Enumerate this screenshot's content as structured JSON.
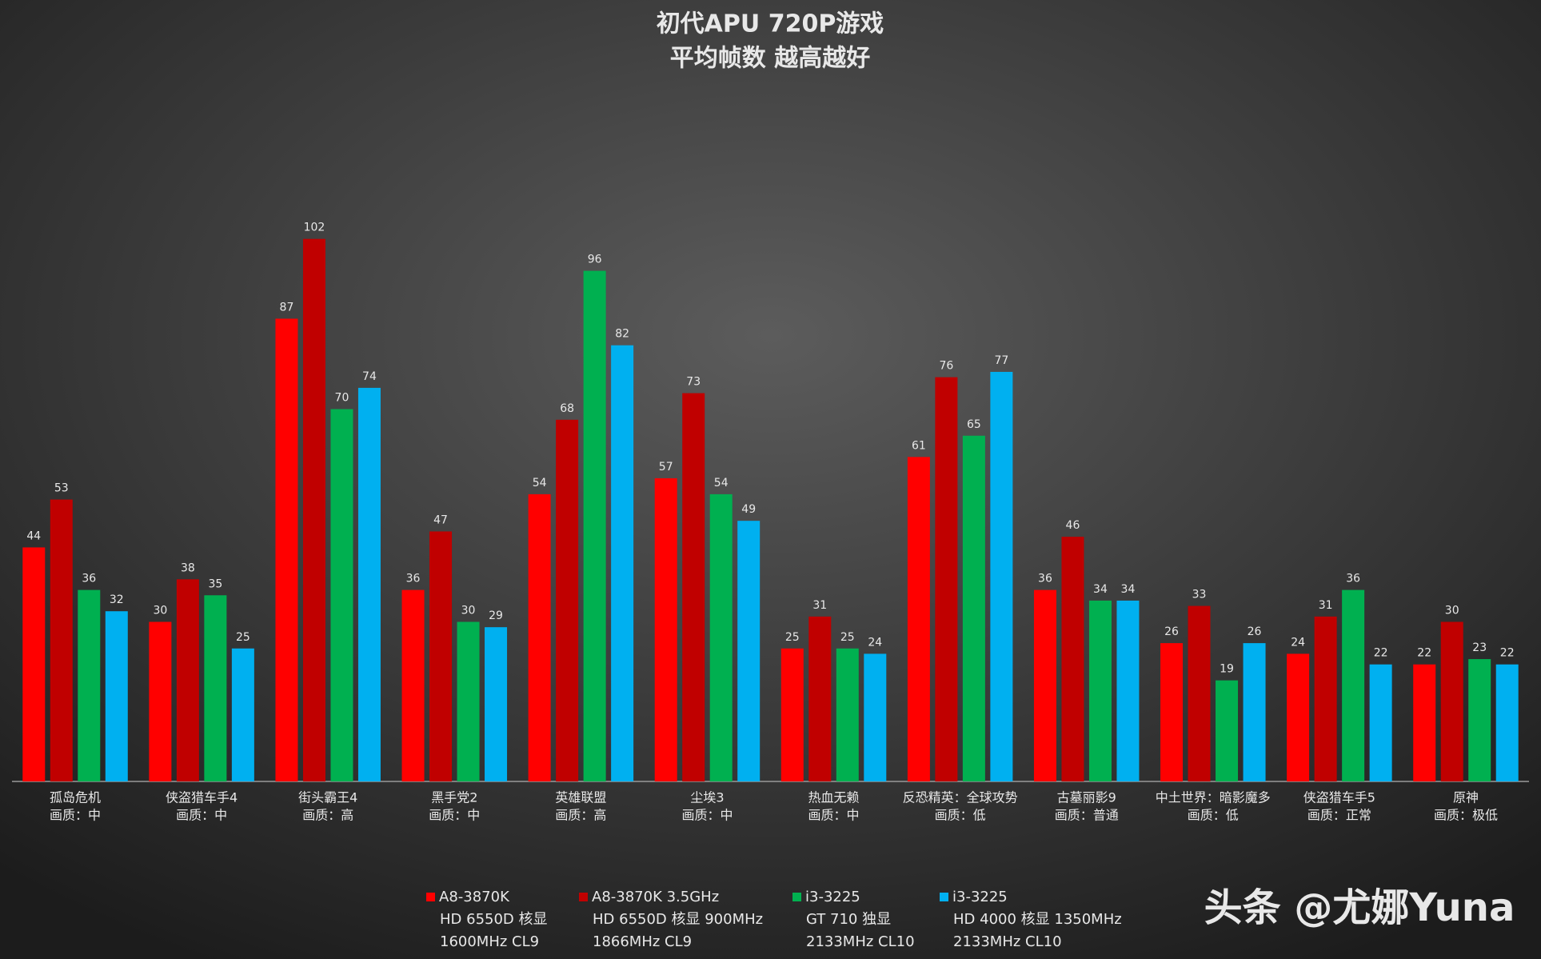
{
  "chart_data": {
    "type": "bar",
    "title": "初代APU  720P游戏",
    "subtitle": "平均帧数 越高越好",
    "categories": [
      [
        "孤岛危机",
        "画质：中"
      ],
      [
        "侠盗猎车手4",
        "画质：中"
      ],
      [
        "街头霸王4",
        "画质：高"
      ],
      [
        "黑手党2",
        "画质：中"
      ],
      [
        "英雄联盟",
        "画质：高"
      ],
      [
        "尘埃3",
        "画质：中"
      ],
      [
        "热血无赖",
        "画质：中"
      ],
      [
        "反恐精英：全球攻势",
        "画质：低"
      ],
      [
        "古墓丽影9",
        "画质：普通"
      ],
      [
        "中土世界：暗影魔多",
        "画质：低"
      ],
      [
        "侠盗猎车手5",
        "画质：正常"
      ],
      [
        "原神",
        "画质：极低"
      ]
    ],
    "series": [
      {
        "name": [
          "A8-3870K",
          "HD 6550D 核显",
          "1600MHz CL9"
        ],
        "color": "#ff0000",
        "values": [
          44,
          30,
          87,
          36,
          54,
          57,
          25,
          61,
          36,
          26,
          24,
          22
        ]
      },
      {
        "name": [
          "A8-3870K 3.5GHz",
          "HD 6550D 核显 900MHz",
          "1866MHz CL9"
        ],
        "color": "#c00000",
        "values": [
          53,
          38,
          102,
          47,
          68,
          73,
          31,
          76,
          46,
          33,
          31,
          30
        ]
      },
      {
        "name": [
          "i3-3225",
          "GT 710 独显",
          "2133MHz CL10"
        ],
        "color": "#00b050",
        "values": [
          36,
          35,
          70,
          30,
          96,
          54,
          25,
          65,
          34,
          19,
          36,
          23
        ]
      },
      {
        "name": [
          "i3-3225",
          "HD 4000 核显 1350MHz",
          "2133MHz CL10"
        ],
        "color": "#00b0f0",
        "values": [
          32,
          25,
          74,
          29,
          82,
          49,
          24,
          77,
          34,
          26,
          22,
          22
        ]
      }
    ],
    "ylim": [
      0,
      120
    ],
    "legend": "bottom",
    "watermark": "头条 @尤娜Yuna"
  }
}
